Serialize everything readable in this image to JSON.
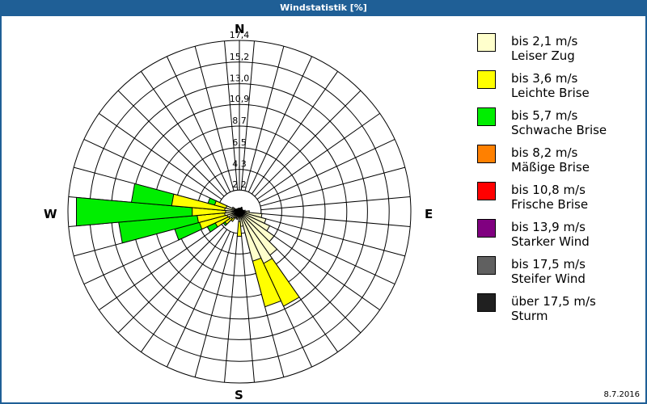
{
  "title": "Windstatistik [%]",
  "date": "8.7.2016",
  "directions": {
    "n": "N",
    "e": "E",
    "s": "S",
    "w": "W"
  },
  "legend": [
    {
      "range": "bis 2,1 m/s",
      "name": "Leiser Zug",
      "color": "#ffffcc"
    },
    {
      "range": "bis 3,6 m/s",
      "name": "Leichte Brise",
      "color": "#ffff00"
    },
    {
      "range": "bis 5,7 m/s",
      "name": "Schwache Brise",
      "color": "#00ee00"
    },
    {
      "range": "bis 8,2 m/s",
      "name": "Mäßige Brise",
      "color": "#ff8000"
    },
    {
      "range": "bis 10,8 m/s",
      "name": "Frische Brise",
      "color": "#ff0000"
    },
    {
      "range": "bis 13,9 m/s",
      "name": "Starker Wind",
      "color": "#800080"
    },
    {
      "range": "bis 17,5 m/s",
      "name": "Steifer Wind",
      "color": "#606060"
    },
    {
      "range": "über 17,5 m/s",
      "name": "Sturm",
      "color": "#202020"
    }
  ],
  "chart_data": {
    "type": "wind-rose",
    "title": "Windstatistik [%]",
    "rings": [
      2.2,
      4.3,
      6.5,
      8.7,
      10.9,
      13.0,
      15.2,
      17.4
    ],
    "ring_labels": [
      "2,2",
      "4,3",
      "6,5",
      "8,7",
      "10,9",
      "13,0",
      "15,2",
      "17,4"
    ],
    "rmax": 17.4,
    "sector_width_deg": 10,
    "series": [
      "bis 2,1 m/s",
      "bis 3,6 m/s",
      "bis 5,7 m/s"
    ],
    "sectors": [
      {
        "dir": 0,
        "cum": [
          0.2,
          0.2,
          0.2
        ]
      },
      {
        "dir": 10,
        "cum": [
          0.2,
          0.2,
          0.2
        ]
      },
      {
        "dir": 20,
        "cum": [
          0.4,
          0.4,
          0.4
        ]
      },
      {
        "dir": 30,
        "cum": [
          0.5,
          0.5,
          0.5
        ]
      },
      {
        "dir": 40,
        "cum": [
          0.4,
          0.4,
          0.4
        ]
      },
      {
        "dir": 50,
        "cum": [
          0.3,
          0.3,
          0.3
        ]
      },
      {
        "dir": 60,
        "cum": [
          0.3,
          0.3,
          0.3
        ]
      },
      {
        "dir": 70,
        "cum": [
          0.4,
          0.4,
          0.4
        ]
      },
      {
        "dir": 80,
        "cum": [
          0.6,
          0.6,
          0.6
        ]
      },
      {
        "dir": 90,
        "cum": [
          1.0,
          1.0,
          1.0
        ]
      },
      {
        "dir": 100,
        "cum": [
          2.3,
          2.3,
          2.3
        ]
      },
      {
        "dir": 110,
        "cum": [
          2.8,
          2.8,
          2.8
        ]
      },
      {
        "dir": 120,
        "cum": [
          3.4,
          3.4,
          3.4
        ]
      },
      {
        "dir": 130,
        "cum": [
          4.3,
          4.3,
          4.3
        ]
      },
      {
        "dir": 140,
        "cum": [
          5.4,
          5.4,
          5.4
        ]
      },
      {
        "dir": 150,
        "cum": [
          5.8,
          10.6,
          10.6
        ]
      },
      {
        "dir": 160,
        "cum": [
          5.2,
          10.0,
          10.0
        ]
      },
      {
        "dir": 170,
        "cum": [
          1.5,
          1.5,
          1.5
        ]
      },
      {
        "dir": 180,
        "cum": [
          1.0,
          2.5,
          2.5
        ]
      },
      {
        "dir": 190,
        "cum": [
          0.5,
          0.5,
          0.5
        ]
      },
      {
        "dir": 200,
        "cum": [
          0.8,
          0.8,
          0.8
        ]
      },
      {
        "dir": 210,
        "cum": [
          0.7,
          0.7,
          0.7
        ]
      },
      {
        "dir": 220,
        "cum": [
          0.8,
          1.2,
          1.2
        ]
      },
      {
        "dir": 230,
        "cum": [
          1.0,
          1.8,
          2.0
        ]
      },
      {
        "dir": 240,
        "cum": [
          1.2,
          2.7,
          3.6
        ]
      },
      {
        "dir": 250,
        "cum": [
          1.3,
          4.2,
          6.8
        ]
      },
      {
        "dir": 260,
        "cum": [
          1.5,
          4.3,
          12.3
        ]
      },
      {
        "dir": 270,
        "cum": [
          1.4,
          4.8,
          16.6
        ]
      },
      {
        "dir": 280,
        "cum": [
          1.5,
          6.9,
          11.0
        ]
      },
      {
        "dir": 290,
        "cum": [
          1.4,
          2.6,
          3.3
        ]
      },
      {
        "dir": 300,
        "cum": [
          0.8,
          0.8,
          0.8
        ]
      },
      {
        "dir": 310,
        "cum": [
          0.4,
          0.4,
          0.4
        ]
      },
      {
        "dir": 320,
        "cum": [
          0.3,
          0.3,
          0.3
        ]
      },
      {
        "dir": 330,
        "cum": [
          0.3,
          0.3,
          0.3
        ]
      },
      {
        "dir": 340,
        "cum": [
          0.2,
          0.2,
          0.2
        ]
      },
      {
        "dir": 350,
        "cum": [
          0.2,
          0.2,
          0.2
        ]
      }
    ]
  }
}
